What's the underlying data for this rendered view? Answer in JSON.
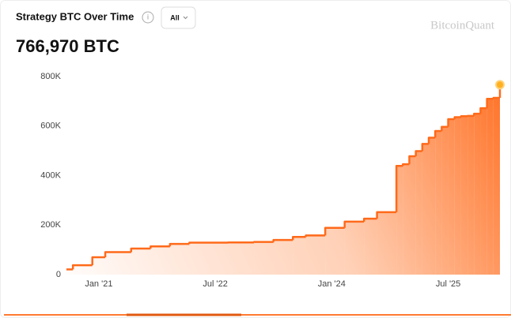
{
  "chart_data": {
    "type": "step-area",
    "title": "Strategy BTC Over Time",
    "range_selector": "All",
    "watermark": "BitcoinQuant",
    "headline": "766,970 BTC",
    "color": "#ff6a1a",
    "x": [
      "2020-08",
      "2020-09",
      "2020-12",
      "2021-02",
      "2021-06",
      "2021-09",
      "2021-12",
      "2022-03",
      "2022-09",
      "2023-01",
      "2023-04",
      "2023-07",
      "2023-09",
      "2023-12",
      "2024-03",
      "2024-06",
      "2024-08",
      "2024-11",
      "2024-12",
      "2025-01",
      "2025-02",
      "2025-03",
      "2025-04",
      "2025-05",
      "2025-06",
      "2025-07",
      "2025-08",
      "2025-09",
      "2025-10",
      "2025-11",
      "2025-12",
      "2026-01",
      "2026-02",
      "2026-03"
    ],
    "values": [
      21000,
      38000,
      70000,
      91000,
      105000,
      114000,
      124000,
      129000,
      130000,
      132000,
      140000,
      152000,
      158000,
      189000,
      214000,
      226000,
      252000,
      439000,
      446000,
      478000,
      499000,
      528000,
      553000,
      580000,
      597000,
      628000,
      636000,
      640000,
      641000,
      650000,
      672000,
      710000,
      714000,
      766970
    ],
    "xlim": [
      "2020-08",
      "2026-03"
    ],
    "xticks": [
      {
        "value": "2021-01",
        "label": "Jan '21"
      },
      {
        "value": "2022-07",
        "label": "Jul '22"
      },
      {
        "value": "2024-01",
        "label": "Jan '24"
      },
      {
        "value": "2025-07",
        "label": "Jul '25"
      }
    ],
    "ylim": [
      0,
      800000
    ],
    "yticks": [
      0,
      {
        "value": 200000,
        "label": "200K"
      },
      {
        "value": 400000,
        "label": "400K"
      },
      {
        "value": 600000,
        "label": "600K"
      },
      {
        "value": 800000,
        "label": "800K"
      }
    ],
    "grid": false
  }
}
